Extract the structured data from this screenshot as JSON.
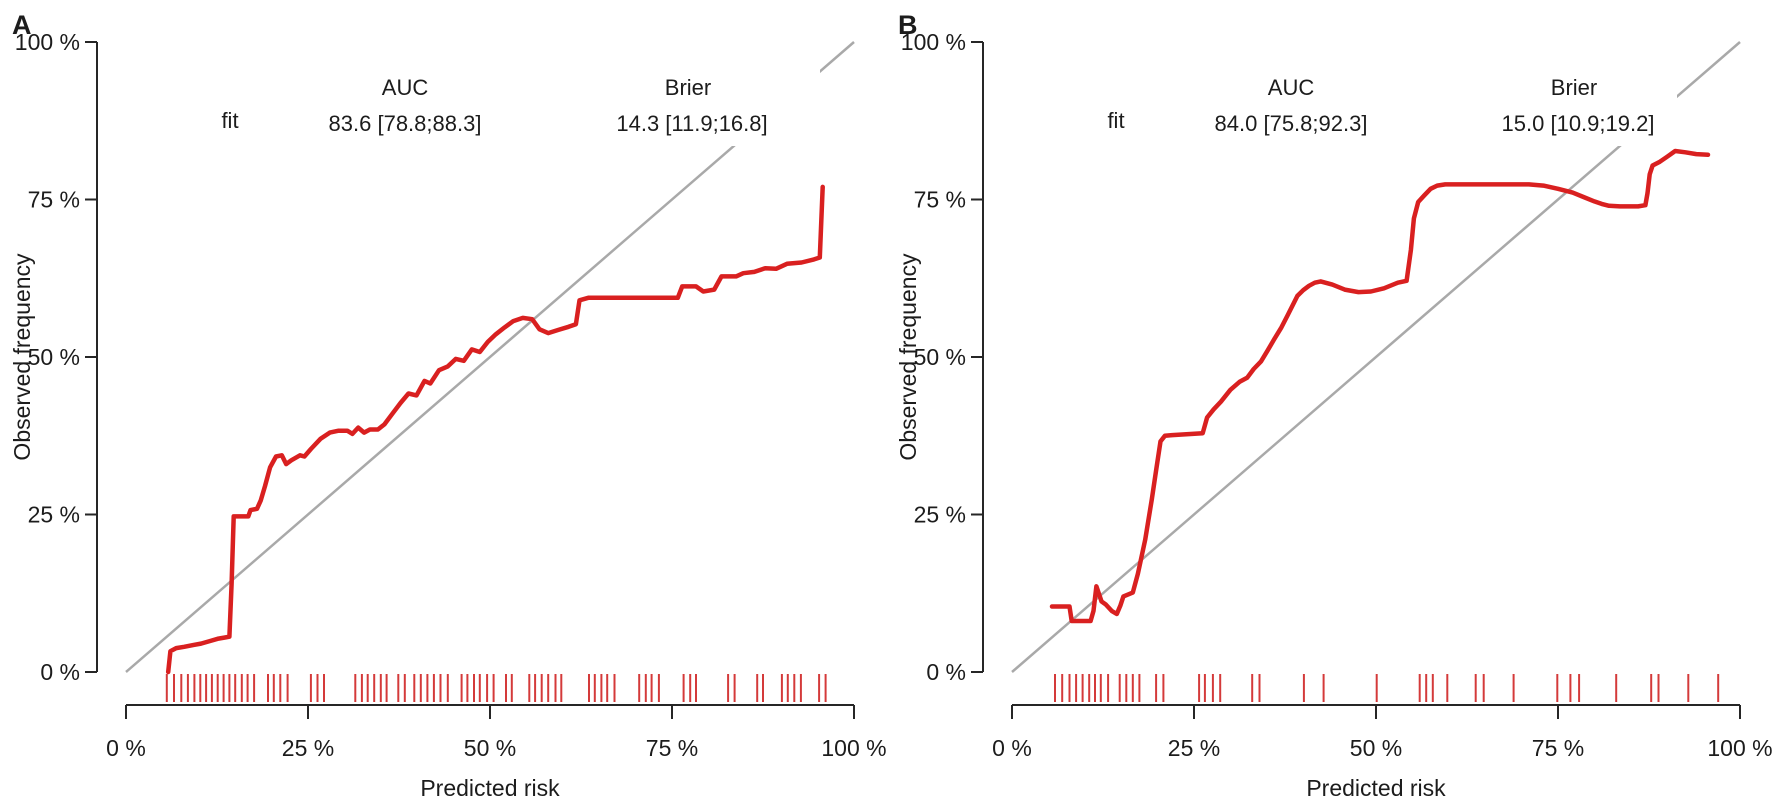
{
  "figure": {
    "background": "#ffffff",
    "description_colors": {
      "curve_red": "#d92020",
      "rug_red": "#d43a3a",
      "diagonal_gray": "#a9a9a9",
      "axis_black": "#262626",
      "text_black": "#1c1c1c"
    }
  },
  "chart_data": [
    {
      "type": "line",
      "panel_label": "A",
      "title": "",
      "xlabel": "Predicted risk",
      "ylabel": "Observed frequency",
      "xlim": [
        0,
        100
      ],
      "ylim": [
        0,
        100
      ],
      "grid": false,
      "legend_position": "none",
      "x_ticks": {
        "values": [
          0,
          25,
          50,
          75,
          100
        ],
        "labels": [
          "0 %",
          "25 %",
          "50 %",
          "75 %",
          "100 %"
        ]
      },
      "y_ticks": {
        "values": [
          0,
          25,
          50,
          75,
          100
        ],
        "labels": [
          "0 %",
          "25 %",
          "50 %",
          "75 %",
          "100 %"
        ]
      },
      "stats": {
        "row_label": "fit",
        "auc_header": "AUC",
        "auc_value": "83.6 [78.8;88.3]",
        "brier_header": "Brier",
        "brier_value": "14.3 [11.9;16.8]"
      },
      "series": [
        {
          "name": "reference-diagonal",
          "points": [
            [
              0,
              0
            ],
            [
              100,
              100
            ]
          ]
        },
        {
          "name": "calibration-curve",
          "points": [
            [
              5.8,
              0
            ],
            [
              6.1,
              3.3
            ],
            [
              6.9,
              3.8
            ],
            [
              8.0,
              4.0
            ],
            [
              9.3,
              4.3
            ],
            [
              10.3,
              4.5
            ],
            [
              11.5,
              4.9
            ],
            [
              12.7,
              5.3
            ],
            [
              13.7,
              5.5
            ],
            [
              14.2,
              5.6
            ],
            [
              14.5,
              14.0
            ],
            [
              14.8,
              24.7
            ],
            [
              16.8,
              24.7
            ],
            [
              17.1,
              25.7
            ],
            [
              18.0,
              25.9
            ],
            [
              18.5,
              27.2
            ],
            [
              19.1,
              29.5
            ],
            [
              19.8,
              32.5
            ],
            [
              20.6,
              34.2
            ],
            [
              21.4,
              34.4
            ],
            [
              22.0,
              33.0
            ],
            [
              22.7,
              33.6
            ],
            [
              23.9,
              34.4
            ],
            [
              24.5,
              34.2
            ],
            [
              25.4,
              35.4
            ],
            [
              26.7,
              37.0
            ],
            [
              28.0,
              38.0
            ],
            [
              29.2,
              38.3
            ],
            [
              30.4,
              38.3
            ],
            [
              31.1,
              37.8
            ],
            [
              31.9,
              38.8
            ],
            [
              32.7,
              38.0
            ],
            [
              33.5,
              38.5
            ],
            [
              34.6,
              38.5
            ],
            [
              35.5,
              39.3
            ],
            [
              36.6,
              41.0
            ],
            [
              37.7,
              42.7
            ],
            [
              38.8,
              44.2
            ],
            [
              39.9,
              43.9
            ],
            [
              41.0,
              46.2
            ],
            [
              41.8,
              45.8
            ],
            [
              43.0,
              47.9
            ],
            [
              44.2,
              48.5
            ],
            [
              45.3,
              49.7
            ],
            [
              46.4,
              49.4
            ],
            [
              47.5,
              51.2
            ],
            [
              48.6,
              50.8
            ],
            [
              49.7,
              52.4
            ],
            [
              50.8,
              53.6
            ],
            [
              52.0,
              54.7
            ],
            [
              53.2,
              55.7
            ],
            [
              54.5,
              56.2
            ],
            [
              55.8,
              56.0
            ],
            [
              56.8,
              54.4
            ],
            [
              58.0,
              53.8
            ],
            [
              59.4,
              54.3
            ],
            [
              60.8,
              54.8
            ],
            [
              61.8,
              55.2
            ],
            [
              62.3,
              59.0
            ],
            [
              63.5,
              59.4
            ],
            [
              75.8,
              59.4
            ],
            [
              76.4,
              61.2
            ],
            [
              78.3,
              61.2
            ],
            [
              79.3,
              60.4
            ],
            [
              80.8,
              60.7
            ],
            [
              81.8,
              62.8
            ],
            [
              83.8,
              62.8
            ],
            [
              84.8,
              63.3
            ],
            [
              86.3,
              63.5
            ],
            [
              87.8,
              64.1
            ],
            [
              89.3,
              64.0
            ],
            [
              90.8,
              64.8
            ],
            [
              92.8,
              65.0
            ],
            [
              94.5,
              65.5
            ],
            [
              95.3,
              65.8
            ],
            [
              95.7,
              77.0
            ]
          ]
        }
      ],
      "rug_x": [
        5.6,
        6.6,
        7.6,
        8.5,
        9.4,
        10.2,
        11.0,
        11.8,
        12.6,
        13.4,
        14.2,
        15.0,
        15.9,
        16.7,
        17.6,
        19.5,
        20.3,
        21.2,
        22.2,
        25.4,
        26.3,
        27.2,
        31.5,
        32.4,
        33.2,
        34.1,
        35.0,
        35.8,
        37.4,
        38.3,
        39.6,
        40.5,
        41.4,
        42.3,
        43.2,
        44.2,
        46.1,
        46.9,
        47.8,
        48.6,
        49.6,
        50.5,
        52.2,
        53.0,
        55.4,
        56.2,
        57.1,
        58.0,
        59.0,
        59.8,
        63.6,
        64.4,
        65.3,
        66.1,
        67.1,
        70.5,
        71.4,
        72.2,
        73.2,
        76.6,
        77.5,
        78.3,
        82.7,
        83.6,
        86.7,
        87.5,
        90.1,
        90.9,
        91.8,
        92.7,
        95.2,
        96.1
      ]
    },
    {
      "type": "line",
      "panel_label": "B",
      "title": "",
      "xlabel": "Predicted risk",
      "ylabel": "Observed frequency",
      "xlim": [
        0,
        100
      ],
      "ylim": [
        0,
        100
      ],
      "grid": false,
      "legend_position": "none",
      "x_ticks": {
        "values": [
          0,
          25,
          50,
          75,
          100
        ],
        "labels": [
          "0 %",
          "25 %",
          "50 %",
          "75 %",
          "100 %"
        ]
      },
      "y_ticks": {
        "values": [
          0,
          25,
          50,
          75,
          100
        ],
        "labels": [
          "0 %",
          "25 %",
          "50 %",
          "75 %",
          "100 %"
        ]
      },
      "stats": {
        "row_label": "fit",
        "auc_header": "AUC",
        "auc_value": "84.0 [75.8;92.3]",
        "brier_header": "Brier",
        "brier_value": "15.0 [10.9;19.2]"
      },
      "series": [
        {
          "name": "reference-diagonal",
          "points": [
            [
              0,
              0
            ],
            [
              100,
              100
            ]
          ]
        },
        {
          "name": "calibration-curve",
          "points": [
            [
              5.5,
              10.4
            ],
            [
              7.9,
              10.4
            ],
            [
              8.2,
              8.1
            ],
            [
              10.8,
              8.1
            ],
            [
              11.2,
              9.7
            ],
            [
              11.6,
              13.6
            ],
            [
              12.3,
              11.2
            ],
            [
              12.9,
              10.7
            ],
            [
              13.7,
              9.7
            ],
            [
              14.4,
              9.2
            ],
            [
              14.9,
              10.6
            ],
            [
              15.3,
              12.0
            ],
            [
              16.6,
              12.6
            ],
            [
              17.3,
              15.6
            ],
            [
              18.3,
              21.0
            ],
            [
              19.2,
              27.4
            ],
            [
              19.8,
              32.0
            ],
            [
              20.4,
              36.6
            ],
            [
              21.0,
              37.5
            ],
            [
              22.0,
              37.6
            ],
            [
              26.2,
              37.9
            ],
            [
              26.8,
              40.4
            ],
            [
              27.7,
              41.7
            ],
            [
              28.7,
              42.9
            ],
            [
              30.0,
              44.8
            ],
            [
              31.3,
              46.1
            ],
            [
              32.3,
              46.7
            ],
            [
              33.2,
              48.1
            ],
            [
              34.2,
              49.3
            ],
            [
              35.1,
              51.0
            ],
            [
              36.0,
              52.8
            ],
            [
              37.0,
              54.7
            ],
            [
              37.8,
              56.5
            ],
            [
              38.5,
              58.1
            ],
            [
              39.2,
              59.7
            ],
            [
              40.0,
              60.6
            ],
            [
              40.8,
              61.3
            ],
            [
              41.6,
              61.8
            ],
            [
              42.4,
              62.0
            ],
            [
              44.0,
              61.5
            ],
            [
              45.7,
              60.7
            ],
            [
              47.6,
              60.3
            ],
            [
              49.3,
              60.4
            ],
            [
              51.1,
              60.9
            ],
            [
              53.0,
              61.8
            ],
            [
              54.2,
              62.1
            ],
            [
              54.8,
              67.0
            ],
            [
              55.2,
              72.0
            ],
            [
              55.8,
              74.6
            ],
            [
              56.6,
              75.6
            ],
            [
              57.5,
              76.7
            ],
            [
              58.4,
              77.2
            ],
            [
              59.5,
              77.4
            ],
            [
              71.0,
              77.4
            ],
            [
              73.0,
              77.2
            ],
            [
              75.0,
              76.7
            ],
            [
              77.0,
              76.1
            ],
            [
              78.5,
              75.4
            ],
            [
              80.0,
              74.7
            ],
            [
              81.0,
              74.3
            ],
            [
              82.0,
              74.0
            ],
            [
              83.5,
              73.9
            ],
            [
              86.0,
              73.9
            ],
            [
              87.0,
              74.1
            ],
            [
              87.3,
              76.0
            ],
            [
              87.6,
              79.0
            ],
            [
              88.0,
              80.4
            ],
            [
              89.0,
              81.0
            ],
            [
              90.0,
              81.8
            ],
            [
              91.1,
              82.7
            ],
            [
              92.5,
              82.5
            ],
            [
              94.0,
              82.2
            ],
            [
              95.6,
              82.1
            ]
          ]
        }
      ],
      "rug_x": [
        5.9,
        6.9,
        7.9,
        8.8,
        9.7,
        10.6,
        11.4,
        12.2,
        13.2,
        14.8,
        15.7,
        16.6,
        17.5,
        19.8,
        20.8,
        25.7,
        26.5,
        27.6,
        28.6,
        33.0,
        34.0,
        40.1,
        42.8,
        50.1,
        56.0,
        56.9,
        57.8,
        59.8,
        63.7,
        64.8,
        68.9,
        74.9,
        76.7,
        77.9,
        83.0,
        87.8,
        88.8,
        92.9,
        97.0
      ]
    }
  ]
}
